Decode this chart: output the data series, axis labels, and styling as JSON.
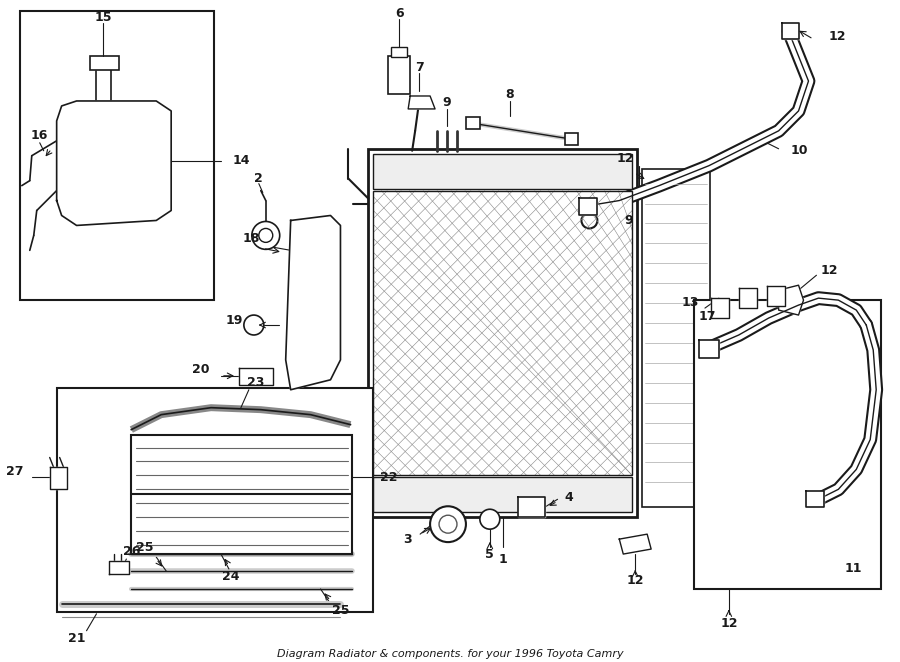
{
  "title": "Diagram Radiator & components. for your 1996 Toyota Camry",
  "bg_color": "#ffffff",
  "line_color": "#1a1a1a",
  "fig_width": 9.0,
  "fig_height": 6.62,
  "dpi": 100
}
